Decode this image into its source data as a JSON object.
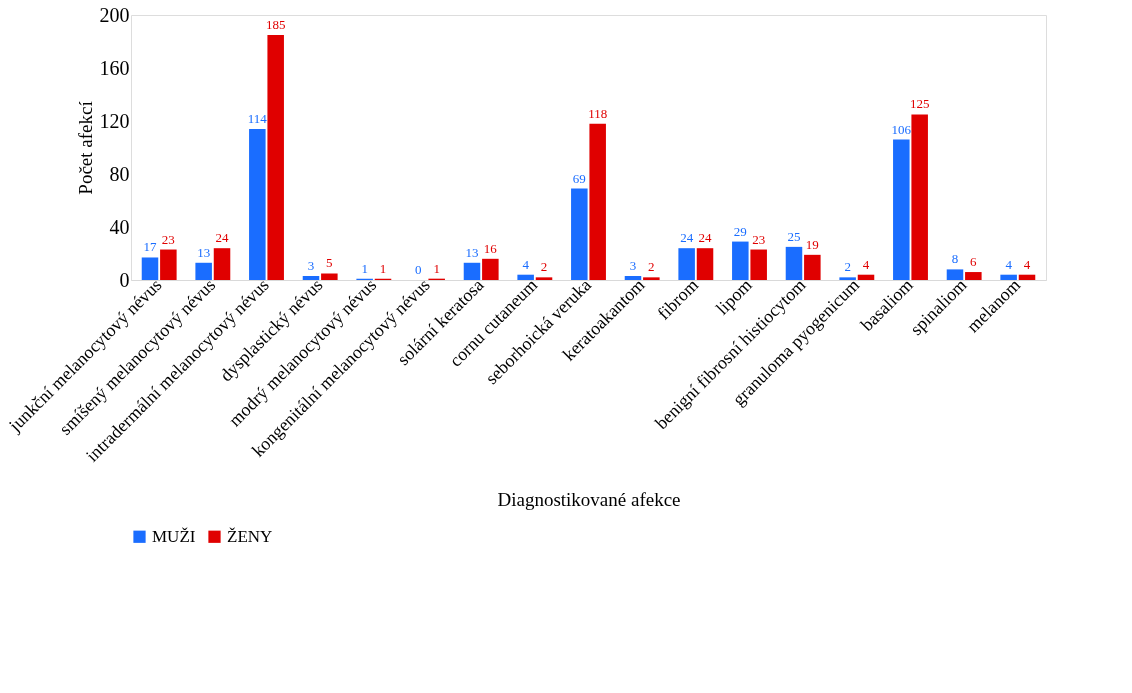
{
  "chart_data": {
    "type": "bar",
    "xlabel": "Diagnostikované afekce",
    "ylabel": "Počet afekcí",
    "categories": [
      "junkční melanocytový névus",
      "smíšený melanocytový névus",
      "intradermální melanocytový névus",
      "dysplastický névus",
      "modrý melanocytový névus",
      "kongenitální melanocytový névus",
      "solární keratosa",
      "cornu cutaneum",
      "seborhoická veruka",
      "keratoakantom",
      "fibrom",
      "lipom",
      "benigní fibrosní histiocytom",
      "granuloma pyogenicum",
      "basaliom",
      "spinaliom",
      "melanom"
    ],
    "series": [
      {
        "name": "MUŽI",
        "color": "#1a6dff",
        "values": [
          17,
          13,
          114,
          3,
          1,
          0,
          13,
          4,
          69,
          3,
          24,
          29,
          25,
          2,
          106,
          8,
          4
        ]
      },
      {
        "name": "ŽENY",
        "color": "#e00000",
        "values": [
          23,
          24,
          185,
          5,
          1,
          1,
          16,
          2,
          118,
          2,
          24,
          23,
          19,
          4,
          125,
          6,
          4
        ]
      }
    ],
    "ylim": [
      0,
      200
    ],
    "yticks": [
      0,
      40,
      80,
      120,
      160,
      200
    ],
    "grid": false,
    "legend": "bottom",
    "data_labels": true
  }
}
